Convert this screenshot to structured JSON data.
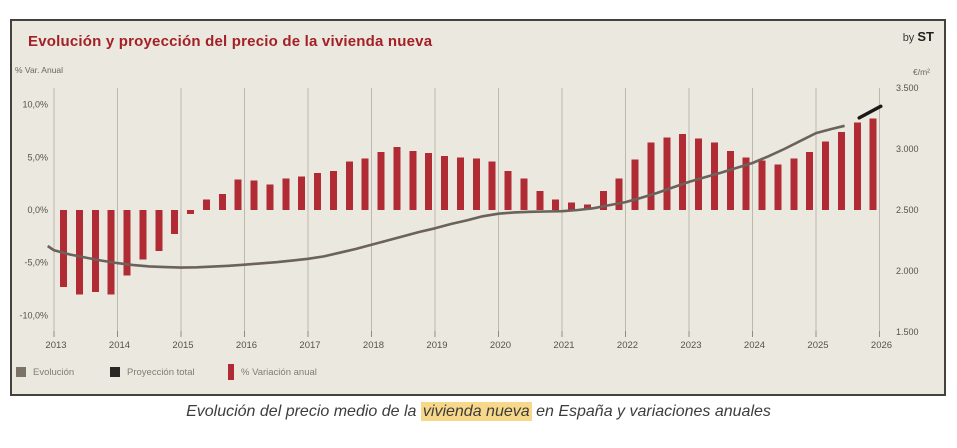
{
  "panel": {
    "title": "Evolución y proyección del precio de la vivienda nueva",
    "title_color": "#a32026",
    "byline_prefix": "by",
    "byline_brand": "ST",
    "left_axis_unit": "% Var. Anual",
    "right_axis_unit": "€/m²"
  },
  "legend": {
    "items": [
      {
        "label": "Evolución",
        "swatch": "square",
        "color": "#7b7268"
      },
      {
        "label": "Proyección total",
        "swatch": "square",
        "color": "#2b2823"
      },
      {
        "label": "% Variación anual",
        "swatch": "bar",
        "color": "#b12b35"
      }
    ]
  },
  "caption": {
    "pre": "Evolución del precio medio de la ",
    "highlight": "vivienda nueva",
    "post": " en España y variaciones anuales",
    "highlight_color": "#f7d88a"
  },
  "chart_data": {
    "type": "combo-bar-line",
    "title": "Evolución y proyección del precio de la vivienda nueva",
    "grid": "vertical-year-lines",
    "legend_position": "bottom-left",
    "x_years": [
      2013,
      2014,
      2015,
      2016,
      2017,
      2018,
      2019,
      2020,
      2021,
      2022,
      2023,
      2024,
      2025,
      2026
    ],
    "left_axis": {
      "title": "% Var. Anual",
      "tick_labels": [
        "10,0%",
        "5,0%",
        "0,0%",
        "-5,0%",
        "-10,0%"
      ],
      "tick_values": [
        10,
        5,
        0,
        -5,
        -10
      ],
      "range": [
        -11.5,
        11.6
      ]
    },
    "right_axis": {
      "title": "€/m²",
      "tick_labels": [
        "3.500",
        "3.000",
        "2.500",
        "2.000",
        "1.500"
      ],
      "tick_values": [
        3500,
        3000,
        2500,
        2000,
        1500
      ],
      "range": [
        1500,
        3510
      ]
    },
    "bars": {
      "name": "% Variación anual",
      "unit": "% annual variation, quarterly bars",
      "years": [
        {
          "year": 2013,
          "values": [
            -7.3,
            -8.0,
            -7.8,
            -8.0
          ]
        },
        {
          "year": 2014,
          "values": [
            -6.2,
            -4.7,
            -3.9,
            -2.3
          ]
        },
        {
          "year": 2015,
          "values": [
            -0.4,
            1.0,
            1.5,
            2.9
          ]
        },
        {
          "year": 2016,
          "values": [
            2.8,
            2.4,
            3.0,
            3.2
          ]
        },
        {
          "year": 2017,
          "values": [
            3.5,
            3.7,
            4.6,
            4.9
          ]
        },
        {
          "year": 2018,
          "values": [
            5.5,
            6.0,
            5.6,
            5.4
          ]
        },
        {
          "year": 2019,
          "values": [
            5.1,
            5.0,
            4.9,
            4.6
          ]
        },
        {
          "year": 2020,
          "values": [
            3.7,
            3.0,
            1.8,
            1.0
          ]
        },
        {
          "year": 2021,
          "values": [
            0.7,
            0.5,
            1.8,
            3.0
          ]
        },
        {
          "year": 2022,
          "values": [
            4.8,
            6.4,
            6.9,
            7.2
          ]
        },
        {
          "year": 2023,
          "values": [
            6.8,
            6.4,
            5.6,
            5.0
          ]
        },
        {
          "year": 2024,
          "values": [
            4.7,
            4.3,
            4.9,
            5.5
          ]
        },
        {
          "year": 2025,
          "values": [
            6.5,
            7.4,
            8.3,
            8.7
          ]
        }
      ]
    },
    "line": {
      "name": "Evolución",
      "unit": "€/m²",
      "points": [
        [
          2012.9,
          2205
        ],
        [
          2013.0,
          2170
        ],
        [
          2013.25,
          2135
        ],
        [
          2013.5,
          2110
        ],
        [
          2013.75,
          2085
        ],
        [
          2014.0,
          2065
        ],
        [
          2014.25,
          2048
        ],
        [
          2014.5,
          2038
        ],
        [
          2014.75,
          2032
        ],
        [
          2015.0,
          2028
        ],
        [
          2015.25,
          2030
        ],
        [
          2015.5,
          2036
        ],
        [
          2015.75,
          2043
        ],
        [
          2016.0,
          2052
        ],
        [
          2016.25,
          2062
        ],
        [
          2016.5,
          2072
        ],
        [
          2016.75,
          2085
        ],
        [
          2017.0,
          2100
        ],
        [
          2017.25,
          2120
        ],
        [
          2017.5,
          2150
        ],
        [
          2017.75,
          2180
        ],
        [
          2018.0,
          2215
        ],
        [
          2018.25,
          2250
        ],
        [
          2018.5,
          2285
        ],
        [
          2018.75,
          2320
        ],
        [
          2019.0,
          2350
        ],
        [
          2019.25,
          2385
        ],
        [
          2019.5,
          2415
        ],
        [
          2019.75,
          2448
        ],
        [
          2020.0,
          2470
        ],
        [
          2020.25,
          2480
        ],
        [
          2020.5,
          2485
        ],
        [
          2020.75,
          2488
        ],
        [
          2021.0,
          2490
        ],
        [
          2021.25,
          2500
        ],
        [
          2021.5,
          2515
        ],
        [
          2021.75,
          2540
        ],
        [
          2022.0,
          2565
        ],
        [
          2022.25,
          2600
        ],
        [
          2022.5,
          2640
        ],
        [
          2022.75,
          2685
        ],
        [
          2023.0,
          2730
        ],
        [
          2023.25,
          2768
        ],
        [
          2023.5,
          2805
        ],
        [
          2023.75,
          2845
        ],
        [
          2024.0,
          2885
        ],
        [
          2024.25,
          2940
        ],
        [
          2024.5,
          3000
        ],
        [
          2024.75,
          3065
        ],
        [
          2025.0,
          3130
        ],
        [
          2025.25,
          3165
        ],
        [
          2025.45,
          3190
        ]
      ]
    },
    "projection": {
      "name": "Proyección total",
      "unit": "€/m²",
      "points": [
        [
          2025.68,
          3255
        ],
        [
          2026.02,
          3350
        ]
      ]
    },
    "colors": {
      "bars": "#b12b35",
      "line": "#6b625b",
      "projection": "#1b1815",
      "grid": "#bcb8ae",
      "tick": "#8f8b82",
      "tick_text": "#57534b"
    }
  }
}
